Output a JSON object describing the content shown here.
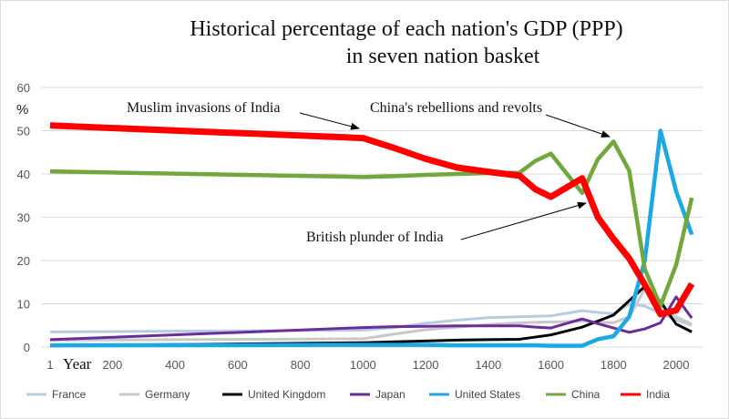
{
  "chart_data": {
    "type": "line",
    "title_line1": "Historical percentage of each nation's GDP (PPP)",
    "title_line2": "in seven nation basket",
    "ylabel": "%",
    "xlabel": "Year",
    "ylim": [
      0,
      60
    ],
    "yticks": [
      0,
      10,
      20,
      30,
      40,
      50,
      60
    ],
    "xticks": [
      1,
      200,
      400,
      600,
      800,
      1000,
      1200,
      1400,
      1600,
      1800,
      2000
    ],
    "xlim": [
      1,
      2050
    ],
    "grid": true,
    "legend_position": "bottom",
    "x": [
      1,
      1000,
      1100,
      1200,
      1300,
      1400,
      1500,
      1550,
      1600,
      1700,
      1750,
      1800,
      1850,
      1900,
      1950,
      2000,
      2050
    ],
    "series": [
      {
        "name": "France",
        "color": "#b4cde3",
        "values": [
          3.5,
          3.9,
          4.5,
          5.5,
          6.2,
          6.8,
          7.0,
          7.1,
          7.2,
          8.4,
          8.0,
          7.7,
          9.9,
          9.5,
          7.7,
          6.3,
          5.0
        ]
      },
      {
        "name": "Germany",
        "color": "#c8c8c8",
        "values": [
          1.6,
          1.9,
          3.0,
          4.0,
          4.6,
          5.2,
          5.6,
          5.7,
          5.8,
          6.0,
          5.8,
          5.6,
          7.0,
          13.4,
          9.1,
          7.0,
          5.3
        ]
      },
      {
        "name": "United Kingdom",
        "color": "#000000",
        "values": [
          0.3,
          1.0,
          1.2,
          1.4,
          1.6,
          1.7,
          1.8,
          2.3,
          2.8,
          4.6,
          6.0,
          7.4,
          10.7,
          14.0,
          10.5,
          5.3,
          3.5
        ]
      },
      {
        "name": "Japan",
        "color": "#6a2d9a",
        "values": [
          1.7,
          4.5,
          4.7,
          4.8,
          4.9,
          4.9,
          4.9,
          4.6,
          4.4,
          6.5,
          5.4,
          4.4,
          3.4,
          4.2,
          5.6,
          11.6,
          6.7
        ]
      },
      {
        "name": "United States",
        "color": "#1aa9e6",
        "values": [
          0.4,
          0.5,
          0.5,
          0.5,
          0.4,
          0.4,
          0.4,
          0.4,
          0.3,
          0.3,
          1.8,
          2.5,
          7.0,
          20.0,
          50.0,
          36.0,
          26.0
        ]
      },
      {
        "name": "China",
        "color": "#70a83c",
        "values": [
          40.6,
          39.3,
          39.5,
          39.8,
          40.0,
          40.2,
          40.3,
          43.0,
          44.7,
          35.6,
          43.4,
          47.5,
          40.8,
          18.0,
          9.5,
          19.0,
          34.5
        ]
      },
      {
        "name": "India",
        "color": "#ff0000",
        "values": [
          51.2,
          48.3,
          46.0,
          43.5,
          41.5,
          40.5,
          39.6,
          36.5,
          34.7,
          39.0,
          30.0,
          25.0,
          20.5,
          14.4,
          7.6,
          8.5,
          14.6
        ]
      }
    ],
    "annotations": [
      {
        "text": "Muslim invasions of India",
        "x": 1000,
        "y": 48.3
      },
      {
        "text": "China's rebellions and revolts",
        "x": 1800,
        "y": 47.5
      },
      {
        "text": "British plunder of India",
        "x": 1700,
        "y": 35.6
      }
    ]
  }
}
